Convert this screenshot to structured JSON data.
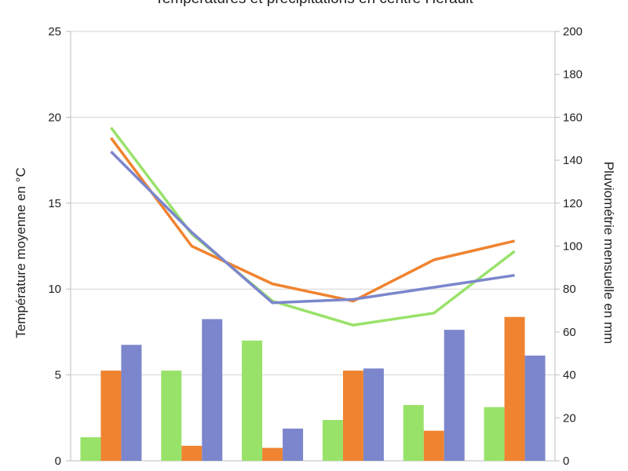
{
  "chart_data": {
    "type": "bar+line",
    "title": "Températures et précipitations en centre Hérault",
    "ylabel_left": "Température moyenne en °C",
    "ylabel_right": "Pluviométrie mensuelle en mm",
    "ylim_left": [
      0,
      25
    ],
    "ylim_right": [
      0,
      200
    ],
    "yticks_left": [
      0,
      5,
      10,
      15,
      20,
      25
    ],
    "yticks_right": [
      0,
      20,
      40,
      60,
      80,
      100,
      120,
      140,
      160,
      180,
      200
    ],
    "grid": true,
    "categories": [
      "",
      "",
      "",
      "",
      "",
      ""
    ],
    "colors": {
      "green": "#99e26a",
      "orange": "#f0832f",
      "blue": "#7b86cc"
    },
    "bars": [
      {
        "color": "#99e26a",
        "values": [
          11,
          42,
          56,
          19,
          26,
          25
        ]
      },
      {
        "color": "#f0832f",
        "values": [
          42,
          7,
          6,
          42,
          14,
          67
        ]
      },
      {
        "color": "#7b86cc",
        "values": [
          54,
          66,
          15,
          43,
          61,
          49
        ]
      }
    ],
    "lines": [
      {
        "color": "#99e26a",
        "values": [
          19.4,
          13.2,
          9.3,
          7.9,
          8.6,
          12.2
        ]
      },
      {
        "color": "#f0832f",
        "values": [
          18.8,
          12.5,
          10.3,
          9.3,
          11.7,
          12.8
        ]
      },
      {
        "color": "#7b86cc",
        "values": [
          18.0,
          13.3,
          9.2,
          9.4,
          10.1,
          10.8
        ]
      }
    ]
  }
}
